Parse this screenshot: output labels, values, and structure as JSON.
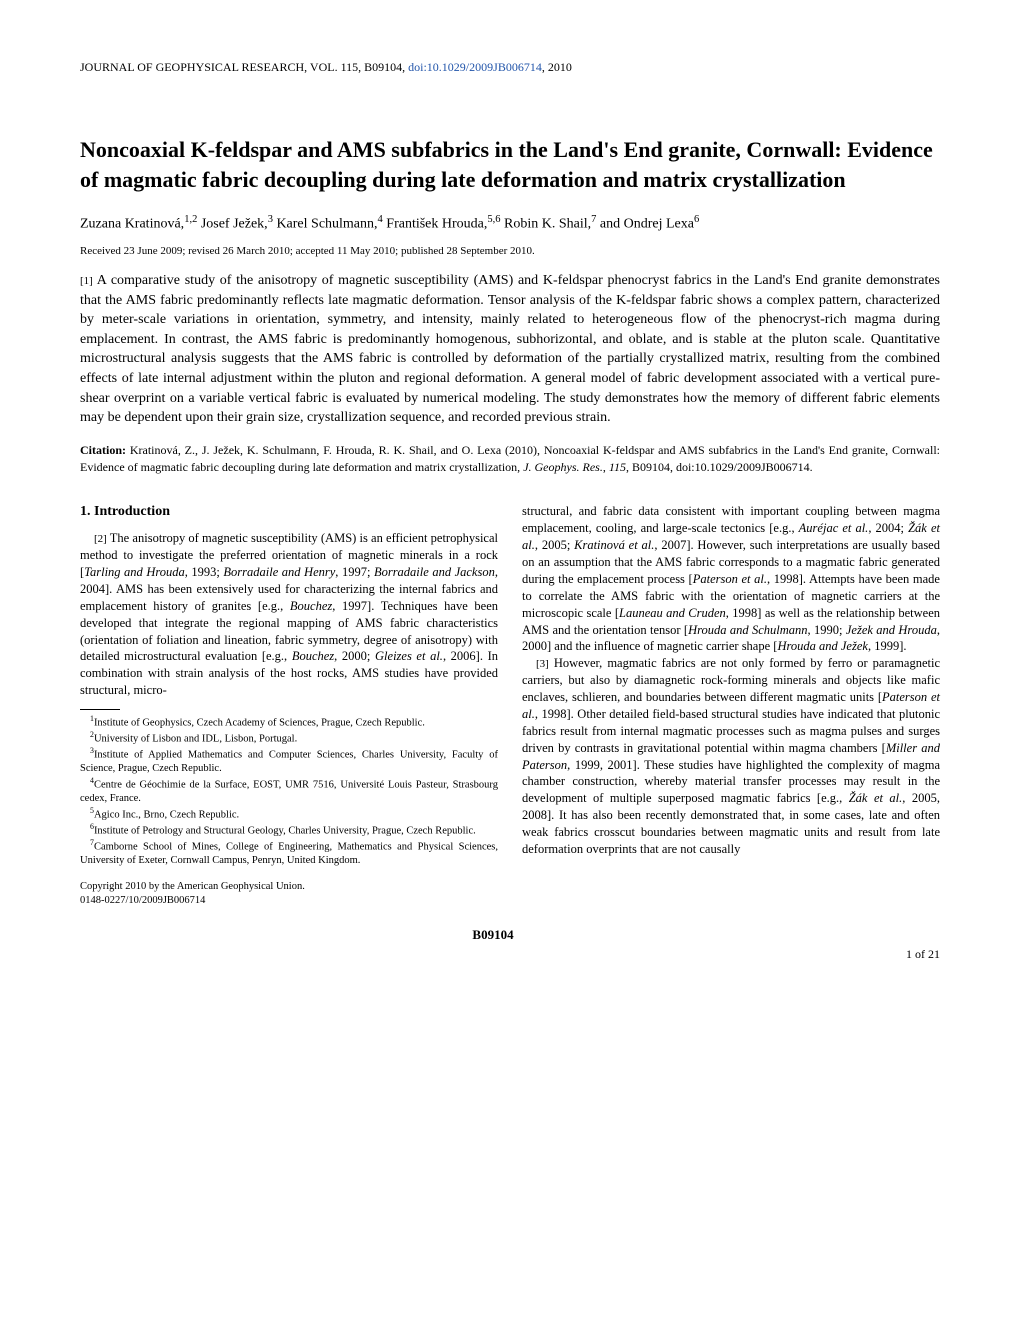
{
  "header": {
    "journal": "JOURNAL OF GEOPHYSICAL RESEARCH, VOL. 115, B09104, ",
    "doi_text": "doi:10.1029/2009JB006714",
    "year": ", 2010"
  },
  "title": "Noncoaxial K-feldspar and AMS subfabrics in the Land's End granite, Cornwall: Evidence of magmatic fabric decoupling during late deformation and matrix crystallization",
  "authors_html": "Zuzana Kratinová,<sup>1,2</sup> Josef Ježek,<sup>3</sup> Karel Schulmann,<sup>4</sup> František Hrouda,<sup>5,6</sup> Robin K. Shail,<sup>7</sup> and Ondrej Lexa<sup>6</sup>",
  "received": "Received 23 June 2009; revised 26 March 2010; accepted 11 May 2010; published 28 September 2010.",
  "abstract": {
    "num": "[1]",
    "text": "A comparative study of the anisotropy of magnetic susceptibility (AMS) and K-feldspar phenocryst fabrics in the Land's End granite demonstrates that the AMS fabric predominantly reflects late magmatic deformation. Tensor analysis of the K-feldspar fabric shows a complex pattern, characterized by meter-scale variations in orientation, symmetry, and intensity, mainly related to heterogeneous flow of the phenocryst-rich magma during emplacement. In contrast, the AMS fabric is predominantly homogenous, subhorizontal, and oblate, and is stable at the pluton scale. Quantitative microstructural analysis suggests that the AMS fabric is controlled by deformation of the partially crystallized matrix, resulting from the combined effects of late internal adjustment within the pluton and regional deformation. A general model of fabric development associated with a vertical pure-shear overprint on a variable vertical fabric is evaluated by numerical modeling. The study demonstrates how the memory of different fabric elements may be dependent upon their grain size, crystallization sequence, and recorded previous strain."
  },
  "citation": {
    "label": "Citation:",
    "text_html": "Kratinová, Z., J. Ježek, K. Schulmann, F. Hrouda, R. K. Shail, and O. Lexa (2010), Noncoaxial K-feldspar and AMS subfabrics in the Land's End granite, Cornwall: Evidence of magmatic fabric decoupling during late deformation and matrix crystallization, <span class=\"italic\">J. Geophys. Res.</span>, <span class=\"italic\">115</span>, B09104, doi:10.1029/2009JB006714."
  },
  "section1": {
    "heading": "1.   Introduction",
    "p2_html": "<span class=\"para-num\">[2]</span> The anisotropy of magnetic susceptibility (AMS) is an efficient petrophysical method to investigate the preferred orientation of magnetic minerals in a rock [<span class=\"italic\">Tarling and Hrouda</span>, 1993; <span class=\"italic\">Borradaile and Henry</span>, 1997; <span class=\"italic\">Borradaile and Jackson</span>, 2004]. AMS has been extensively used for characterizing the internal fabrics and emplacement history of granites [e.g., <span class=\"italic\">Bouchez</span>, 1997]. Techniques have been developed that integrate the regional mapping of AMS fabric characteristics (orientation of foliation and lineation, fabric symmetry, degree of anisotropy) with detailed microstructural evaluation [e.g., <span class=\"italic\">Bouchez</span>, 2000; <span class=\"italic\">Gleizes et al.</span>, 2006]. In combination with strain analysis of the host rocks, AMS studies have provided structural, micro-",
    "p2b_html": "structural, and fabric data consistent with important coupling between magma emplacement, cooling, and large-scale tectonics [e.g., <span class=\"italic\">Auréjac et al.</span>, 2004; <span class=\"italic\">Žák et al.</span>, 2005; <span class=\"italic\">Kratinová et al.</span>, 2007]. However, such interpretations are usually based on an assumption that the AMS fabric corresponds to a magmatic fabric generated during the emplacement process [<span class=\"italic\">Paterson et al.</span>, 1998]. Attempts have been made to correlate the AMS fabric with the orientation of magnetic carriers at the microscopic scale [<span class=\"italic\">Launeau and Cruden</span>, 1998] as well as the relationship between AMS and the orientation tensor [<span class=\"italic\">Hrouda and Schulmann</span>, 1990; <span class=\"italic\">Ježek and Hrouda</span>, 2000] and the influence of magnetic carrier shape [<span class=\"italic\">Hrouda and Ježek</span>, 1999].",
    "p3_html": "<span class=\"para-num\">[3]</span> However, magmatic fabrics are not only formed by ferro or paramagnetic carriers, but also by diamagnetic rock-forming minerals and objects like mafic enclaves, schlieren, and boundaries between different magmatic units [<span class=\"italic\">Paterson et al.</span>, 1998]. Other detailed field-based structural studies have indicated that plutonic fabrics result from internal magmatic processes such as magma pulses and surges driven by contrasts in gravitational potential within magma chambers [<span class=\"italic\">Miller and Paterson</span>, 1999, 2001]. These studies have highlighted the complexity of magma chamber construction, whereby material transfer processes may result in the development of multiple superposed magmatic fabrics [e.g., <span class=\"italic\">Žák et al.</span>, 2005, 2008]. It has also been recently demonstrated that, in some cases, late and often weak fabrics crosscut boundaries between magmatic units and result from late deformation overprints that are not causally"
  },
  "affiliations": [
    "<sup>1</sup>Institute of Geophysics, Czech Academy of Sciences, Prague, Czech Republic.",
    "<sup>2</sup>University of Lisbon and IDL, Lisbon, Portugal.",
    "<sup>3</sup>Institute of Applied Mathematics and Computer Sciences, Charles University, Faculty of Science, Prague, Czech Republic.",
    "<sup>4</sup>Centre de Géochimie de la Surface, EOST, UMR 7516, Université Louis Pasteur, Strasbourg cedex, France.",
    "<sup>5</sup>Agico Inc., Brno, Czech Republic.",
    "<sup>6</sup>Institute of Petrology and Structural Geology, Charles University, Prague, Czech Republic.",
    "<sup>7</sup>Camborne School of Mines, College of Engineering, Mathematics and Physical Sciences, University of Exeter, Cornwall Campus, Penryn, United Kingdom."
  ],
  "copyright": {
    "line1": "Copyright 2010 by the American Geophysical Union.",
    "line2": "0148-0227/10/2009JB006714"
  },
  "footer": {
    "code": "B09104",
    "page": "1 of 21"
  }
}
